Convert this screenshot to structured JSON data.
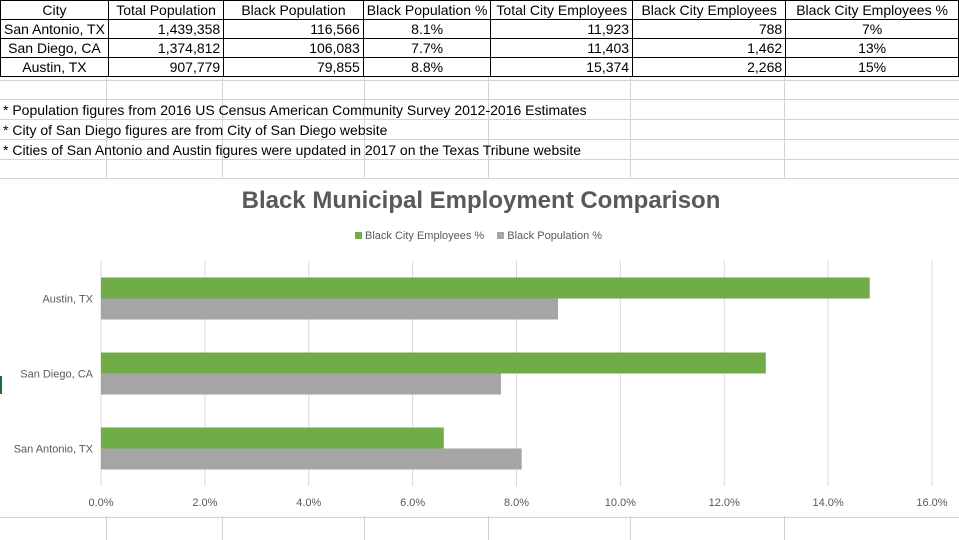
{
  "table": {
    "headers": [
      "City",
      "Total Population",
      "Black Population",
      "Black Population %",
      "Total City Employees",
      "Black City Employees",
      "Black City Employees %"
    ],
    "rows": [
      [
        "San Antonio, TX",
        "1,439,358",
        "116,566",
        "8.1%",
        "11,923",
        "788",
        "7%"
      ],
      [
        "San Diego, CA",
        "1,374,812",
        "106,083",
        "7.7%",
        "11,403",
        "1,462",
        "13%"
      ],
      [
        "Austin, TX",
        "907,779",
        "79,855",
        "8.8%",
        "15,374",
        "2,268",
        "15%"
      ]
    ]
  },
  "notes": [
    "* Population figures from 2016 US Census American Community Survey 2012-2016 Estimates",
    "* City of San Diego figures are from City of San Diego website",
    "* Cities of San Antonio and Austin figures were updated in 2017 on the Texas Tribune website"
  ],
  "colors": {
    "employees": "#70ad47",
    "population": "#a5a5a5",
    "gridline": "#d9d9d9",
    "axis_text": "#595959"
  },
  "chart_data": {
    "type": "bar",
    "orientation": "horizontal",
    "title": "Black Municipal Employment Comparison",
    "categories": [
      "San Antonio, TX",
      "San Diego, CA",
      "Austin, TX"
    ],
    "series": [
      {
        "name": "Black City Employees %",
        "values": [
          6.6,
          12.8,
          14.8
        ]
      },
      {
        "name": "Black Population %",
        "values": [
          8.1,
          7.7,
          8.8
        ]
      }
    ],
    "xlim": [
      0,
      16
    ],
    "x_ticks": [
      "0.0%",
      "2.0%",
      "4.0%",
      "6.0%",
      "8.0%",
      "10.0%",
      "12.0%",
      "14.0%",
      "16.0%"
    ],
    "legend_position": "top",
    "grid": true
  }
}
